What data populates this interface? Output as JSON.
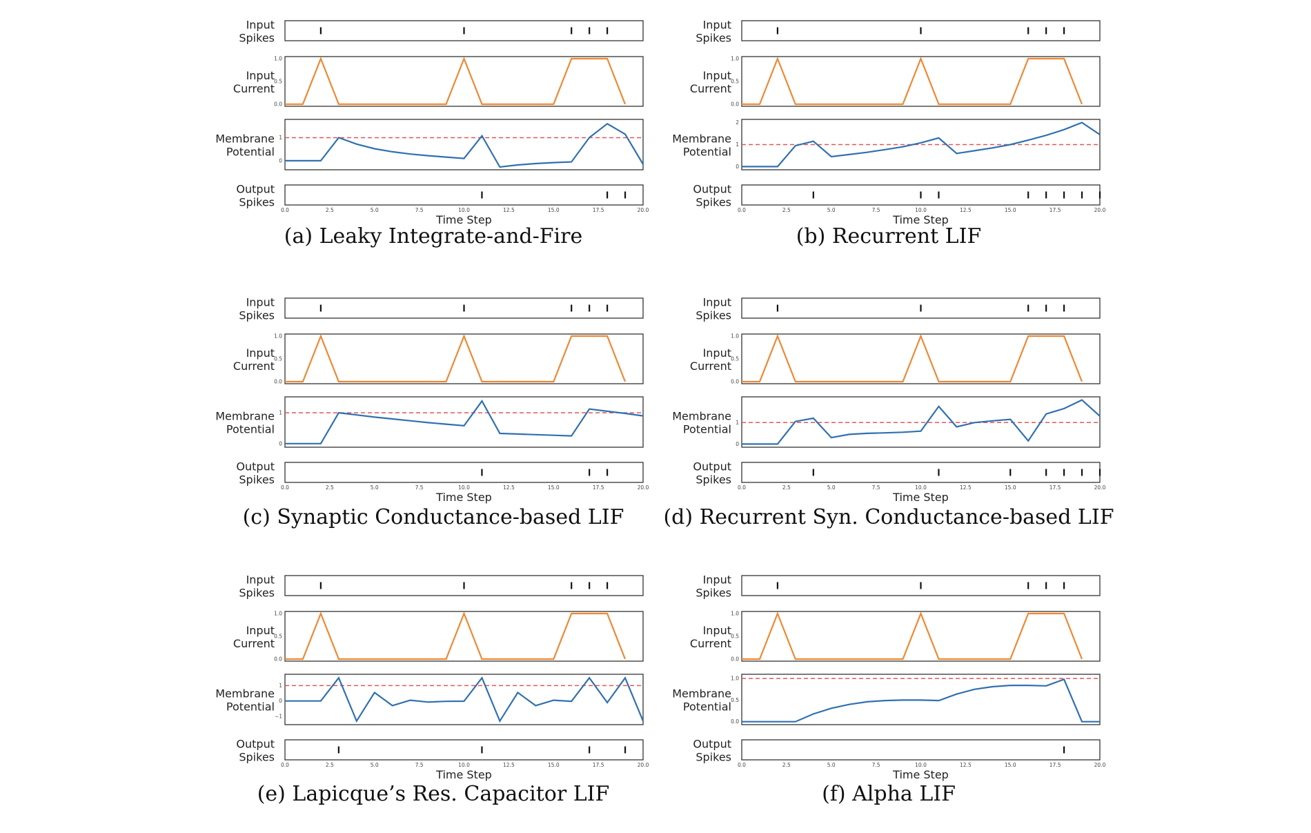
{
  "colors": {
    "current": "#EE8833",
    "membrane": "#3070B0",
    "threshold": "#E45555",
    "spike": "#111111",
    "axis": "#333333"
  },
  "row_labels": {
    "input_spikes": [
      "Input",
      "Spikes"
    ],
    "input_current": [
      "Input",
      "Current"
    ],
    "membrane_potential": [
      "Membrane",
      "Potential"
    ],
    "output_spikes": [
      "Output",
      "Spikes"
    ]
  },
  "chart_data": [
    {
      "id": "a",
      "type": "line",
      "caption": "(a) Leaky Integrate-and-Fire",
      "xlabel": "Time Step",
      "xlim": [
        0,
        20
      ],
      "xticks": [
        "0.0",
        "2.5",
        "5.0",
        "7.5",
        "10.0",
        "12.5",
        "15.0",
        "17.5",
        "20.0"
      ],
      "input_spikes": [
        2,
        10,
        16,
        17,
        18
      ],
      "input_current": {
        "ylim": [
          0,
          1
        ],
        "yticks": [
          "0.0",
          "0.5",
          "1.0"
        ],
        "x": [
          0,
          1,
          2,
          3,
          4,
          5,
          6,
          7,
          8,
          9,
          10,
          11,
          12,
          13,
          14,
          15,
          16,
          17,
          18,
          19
        ],
        "y": [
          0,
          0,
          1,
          0,
          0,
          0,
          0,
          0,
          0,
          0,
          1,
          0,
          0,
          0,
          0,
          0,
          1,
          1,
          1,
          0
        ]
      },
      "membrane_potential": {
        "ylim": [
          -0.3,
          1.7
        ],
        "yticks": [
          "0",
          "1"
        ],
        "ytick_values": [
          0,
          1
        ],
        "threshold": 1,
        "x": [
          0,
          1,
          2,
          3,
          4,
          5,
          6,
          7,
          8,
          9,
          10,
          11,
          12,
          13,
          14,
          15,
          16,
          17,
          18,
          19,
          20
        ],
        "y": [
          0,
          0,
          0,
          1.0,
          0.72,
          0.52,
          0.39,
          0.29,
          0.22,
          0.16,
          0.1,
          1.08,
          -0.27,
          -0.18,
          -0.12,
          -0.08,
          -0.05,
          1.0,
          1.6,
          1.15,
          -0.15
        ]
      },
      "output_spikes": [
        11,
        18,
        19
      ]
    },
    {
      "id": "b",
      "type": "line",
      "caption": "(b) Recurrent LIF",
      "xlabel": "Time Step",
      "xlim": [
        0,
        20
      ],
      "xticks": [
        "0.0",
        "2.5",
        "5.0",
        "7.5",
        "10.0",
        "12.5",
        "15.0",
        "17.5",
        "20.0"
      ],
      "input_spikes": [
        2,
        10,
        16,
        17,
        18
      ],
      "input_current": {
        "ylim": [
          0,
          1
        ],
        "yticks": [
          "0.0",
          "0.5",
          "1.0"
        ],
        "x": [
          0,
          1,
          2,
          3,
          4,
          5,
          6,
          7,
          8,
          9,
          10,
          11,
          12,
          13,
          14,
          15,
          16,
          17,
          18,
          19
        ],
        "y": [
          0,
          0,
          1,
          0,
          0,
          0,
          0,
          0,
          0,
          0,
          1,
          0,
          0,
          0,
          0,
          0,
          1,
          1,
          1,
          0
        ]
      },
      "membrane_potential": {
        "ylim": [
          -0.05,
          2.05
        ],
        "yticks": [
          "0",
          "1",
          "2"
        ],
        "ytick_values": [
          0,
          1,
          2
        ],
        "threshold": 1,
        "x": [
          0,
          1,
          2,
          3,
          4,
          5,
          6,
          7,
          8,
          9,
          10,
          11,
          12,
          13,
          14,
          15,
          16,
          17,
          18,
          19,
          20
        ],
        "y": [
          0,
          0,
          0,
          0.95,
          1.15,
          0.45,
          0.55,
          0.65,
          0.77,
          0.9,
          1.08,
          1.3,
          0.6,
          0.72,
          0.85,
          1.0,
          1.2,
          1.42,
          1.68,
          2.0,
          1.45
        ]
      },
      "output_spikes": [
        4,
        10,
        11,
        16,
        17,
        18,
        19,
        20
      ]
    },
    {
      "id": "c",
      "type": "line",
      "caption": "(c) Synaptic Conductance-based LIF",
      "xlabel": "Time Step",
      "xlim": [
        0,
        20
      ],
      "xticks": [
        "0.0",
        "2.5",
        "5.0",
        "7.5",
        "10.0",
        "12.5",
        "15.0",
        "17.5",
        "20.0"
      ],
      "input_spikes": [
        2,
        10,
        16,
        17,
        18
      ],
      "input_current": {
        "ylim": [
          0,
          1
        ],
        "yticks": [
          "0.0",
          "0.5",
          "1.0"
        ],
        "x": [
          0,
          1,
          2,
          3,
          4,
          5,
          6,
          7,
          8,
          9,
          10,
          11,
          12,
          13,
          14,
          15,
          16,
          17,
          18,
          19
        ],
        "y": [
          0,
          0,
          1,
          0,
          0,
          0,
          0,
          0,
          0,
          0,
          1,
          0,
          0,
          0,
          0,
          0,
          1,
          1,
          1,
          0
        ]
      },
      "membrane_potential": {
        "ylim": [
          -0.05,
          1.45
        ],
        "yticks": [
          "0",
          "1"
        ],
        "ytick_values": [
          0,
          1
        ],
        "threshold": 1,
        "x": [
          0,
          1,
          2,
          3,
          4,
          5,
          6,
          7,
          8,
          9,
          10,
          11,
          12,
          13,
          14,
          15,
          16,
          17,
          18,
          19,
          20
        ],
        "y": [
          0,
          0,
          0,
          1.0,
          0.93,
          0.86,
          0.8,
          0.74,
          0.68,
          0.63,
          0.58,
          1.38,
          0.33,
          0.31,
          0.29,
          0.27,
          0.25,
          1.12,
          1.05,
          0.98,
          0.9
        ]
      },
      "output_spikes": [
        11,
        17,
        18
      ]
    },
    {
      "id": "d",
      "type": "line",
      "caption": "(d) Recurrent Syn. Conductance-based LIF",
      "xlabel": "Time Step",
      "xlim": [
        0,
        20
      ],
      "xticks": [
        "0.0",
        "2.5",
        "5.0",
        "7.5",
        "10.0",
        "12.5",
        "15.0",
        "17.5",
        "20.0"
      ],
      "input_spikes": [
        2,
        10,
        16,
        17,
        18
      ],
      "input_current": {
        "ylim": [
          0,
          1
        ],
        "yticks": [
          "0.0",
          "0.5",
          "1.0"
        ],
        "x": [
          0,
          1,
          2,
          3,
          4,
          5,
          6,
          7,
          8,
          9,
          10,
          11,
          12,
          13,
          14,
          15,
          16,
          17,
          18,
          19
        ],
        "y": [
          0,
          0,
          1,
          0,
          0,
          0,
          0,
          0,
          0,
          0,
          1,
          0,
          0,
          0,
          0,
          0,
          1,
          1,
          1,
          0
        ]
      },
      "membrane_potential": {
        "ylim": [
          -0.05,
          2.1
        ],
        "yticks": [
          "0",
          "1"
        ],
        "ytick_values": [
          0,
          1
        ],
        "threshold": 1,
        "x": [
          0,
          1,
          2,
          3,
          4,
          5,
          6,
          7,
          8,
          9,
          10,
          11,
          12,
          13,
          14,
          15,
          16,
          17,
          18,
          19,
          20
        ],
        "y": [
          0,
          0,
          0,
          1.05,
          1.2,
          0.3,
          0.45,
          0.5,
          0.52,
          0.55,
          0.6,
          1.75,
          0.8,
          1.0,
          1.08,
          1.15,
          0.15,
          1.4,
          1.65,
          2.05,
          1.3
        ]
      },
      "output_spikes": [
        4,
        11,
        15,
        17,
        18,
        19,
        20
      ]
    },
    {
      "id": "e",
      "type": "line",
      "caption": "(e) Lapicque’s Res. Capacitor LIF",
      "xlabel": "Time Step",
      "xlim": [
        0,
        20
      ],
      "xticks": [
        "0.0",
        "2.5",
        "5.0",
        "7.5",
        "10.0",
        "12.5",
        "15.0",
        "17.5",
        "20.0"
      ],
      "input_spikes": [
        2,
        10,
        16,
        17,
        18
      ],
      "input_current": {
        "ylim": [
          0,
          1
        ],
        "yticks": [
          "0.0",
          "0.5",
          "1.0"
        ],
        "x": [
          0,
          1,
          2,
          3,
          4,
          5,
          6,
          7,
          8,
          9,
          10,
          11,
          12,
          13,
          14,
          15,
          16,
          17,
          18,
          19
        ],
        "y": [
          0,
          0,
          1,
          0,
          0,
          0,
          0,
          0,
          0,
          0,
          1,
          0,
          0,
          0,
          0,
          0,
          1,
          1,
          1,
          0
        ]
      },
      "membrane_potential": {
        "ylim": [
          -1.4,
          1.6
        ],
        "yticks": [
          "1",
          "0",
          "−1"
        ],
        "ytick_values": [
          1,
          0,
          -1
        ],
        "threshold": 1,
        "x": [
          0,
          1,
          2,
          3,
          4,
          5,
          6,
          7,
          8,
          9,
          10,
          11,
          12,
          13,
          14,
          15,
          16,
          17,
          18,
          19,
          20
        ],
        "y": [
          0,
          0,
          0,
          1.5,
          -1.3,
          0.55,
          -0.3,
          0.05,
          -0.07,
          -0.02,
          -0.01,
          1.5,
          -1.3,
          0.55,
          -0.3,
          0.05,
          -0.02,
          1.5,
          -0.1,
          1.5,
          -1.3
        ]
      },
      "output_spikes": [
        3,
        11,
        17,
        19
      ]
    },
    {
      "id": "f",
      "type": "line",
      "caption": "(f) Alpha LIF",
      "xlabel": "Time Step",
      "xlim": [
        0,
        20
      ],
      "xticks": [
        "0.0",
        "2.5",
        "5.0",
        "7.5",
        "10.0",
        "12.5",
        "15.0",
        "17.5",
        "20.0"
      ],
      "input_spikes": [
        2,
        10,
        16,
        17,
        18
      ],
      "input_current": {
        "ylim": [
          0,
          1
        ],
        "yticks": [
          "0.0",
          "0.5",
          "1.0"
        ],
        "x": [
          0,
          1,
          2,
          3,
          4,
          5,
          6,
          7,
          8,
          9,
          10,
          11,
          12,
          13,
          14,
          15,
          16,
          17,
          18,
          19
        ],
        "y": [
          0,
          0,
          1,
          0,
          0,
          0,
          0,
          0,
          0,
          0,
          1,
          0,
          0,
          0,
          0,
          0,
          1,
          1,
          1,
          0
        ]
      },
      "membrane_potential": {
        "ylim": [
          -0.02,
          1.05
        ],
        "yticks": [
          "0.0",
          "0.5",
          "1.0"
        ],
        "ytick_values": [
          0,
          0.5,
          1.0
        ],
        "threshold": 1,
        "x": [
          0,
          1,
          2,
          3,
          4,
          5,
          6,
          7,
          8,
          9,
          10,
          11,
          12,
          13,
          14,
          15,
          16,
          17,
          18,
          19,
          20
        ],
        "y": [
          0,
          0,
          0,
          0,
          0.18,
          0.31,
          0.4,
          0.46,
          0.49,
          0.5,
          0.5,
          0.49,
          0.64,
          0.75,
          0.81,
          0.84,
          0.84,
          0.83,
          0.98,
          0,
          0
        ]
      },
      "output_spikes": [
        18
      ]
    }
  ]
}
